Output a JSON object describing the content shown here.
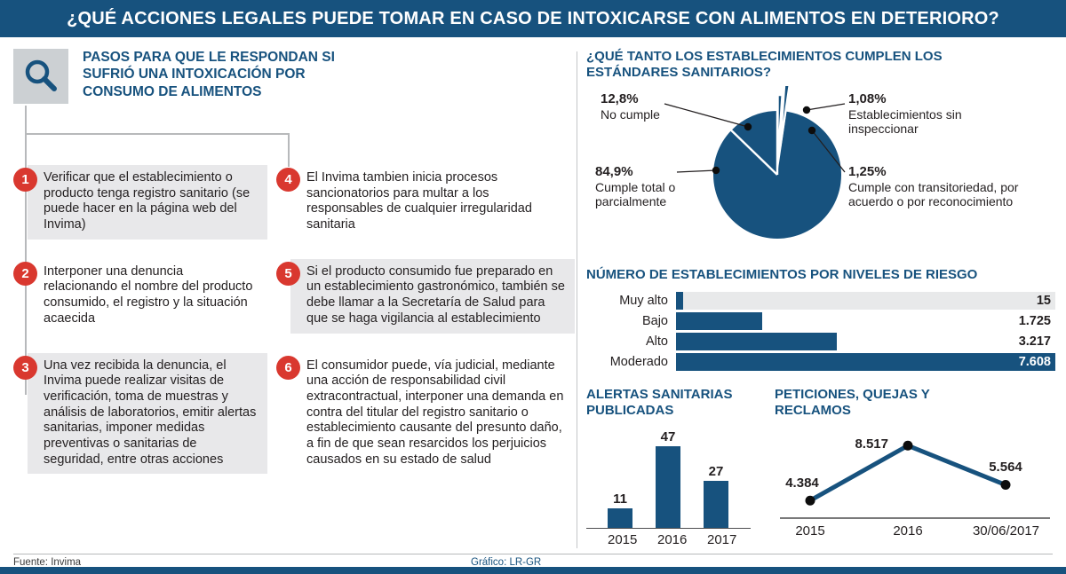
{
  "header": {
    "title": "¿QUÉ ACCIONES LEGALES PUEDE TOMAR EN CASO DE INTOXICARSE CON ALIMENTOS EN DETERIORO?"
  },
  "left": {
    "icon": "search-icon",
    "intro": "PASOS PARA QUE LE RESPONDAN SI SUFRIÓ UNA INTOXICACIÓN POR CONSUMO DE ALIMENTOS",
    "steps": [
      {
        "num": "1",
        "text": "Verificar que el establecimiento o producto tenga registro sanitario (se puede hacer en la página web del Invima)"
      },
      {
        "num": "2",
        "text": "Interponer una denuncia relacionando el nombre del producto consumido, el registro y la situación acaecida"
      },
      {
        "num": "3",
        "text": "Una vez recibida la denuncia, el Invima puede realizar visitas de verificación, toma de muestras y análisis de laboratorios, emitir alertas sanitarias, imponer medidas preventivas o sanitarias de seguridad, entre otras acciones"
      },
      {
        "num": "4",
        "text": "El Invima tambien inicia procesos sancionatorios para multar a los responsables de cualquier irregularidad sanitaria"
      },
      {
        "num": "5",
        "text": "Si el producto consumido fue preparado en un establecimiento gastronómico, también se debe llamar a la Secretaría de Salud para que se haga vigilancia al establecimiento"
      },
      {
        "num": "6",
        "text": "El consumidor puede, vía judicial, mediante una acción de responsabilidad civil extracontractual, interponer una demanda en contra del titular del registro sanitario o establecimiento causante del presunto daño, a fin de que sean resarcidos los perjuicios causados en su estado de salud"
      }
    ]
  },
  "footer": {
    "source": "Fuente: Invima",
    "credit": "Gráfico: LR-GR"
  },
  "colors": {
    "navy": "#17527e",
    "red": "#d9382f",
    "step_gray": "#e8e8ea"
  },
  "chart_data": [
    {
      "type": "pie",
      "title": "¿QUÉ TANTO LOS ESTABLECIMIENTOS CUMPLEN LOS ESTÁNDARES SANITARIOS?",
      "slices": [
        {
          "label": "Cumple total o parcialmente",
          "value_pct": 84.9,
          "display": "84,9%"
        },
        {
          "label": "No cumple",
          "value_pct": 12.8,
          "display": "12,8%"
        },
        {
          "label": "Cumple con transitoriedad, por acuerdo o por reconocimiento",
          "value_pct": 1.25,
          "display": "1,25%"
        },
        {
          "label": "Establecimientos sin inspeccionar",
          "value_pct": 1.08,
          "display": "1,08%"
        }
      ]
    },
    {
      "type": "bar",
      "orientation": "horizontal",
      "title": "NÚMERO DE ESTABLECIMIENTOS POR NIVELES DE RIESGO",
      "categories": [
        "Muy alto",
        "Bajo",
        "Alto",
        "Moderado"
      ],
      "values": [
        15,
        1725,
        3217,
        7608
      ],
      "value_labels": [
        "15",
        "1.725",
        "3.217",
        "7.608"
      ]
    },
    {
      "type": "bar",
      "orientation": "vertical",
      "title": "ALERTAS SANITARIAS PUBLICADAS",
      "categories": [
        "2015",
        "2016",
        "2017"
      ],
      "values": [
        11,
        47,
        27
      ]
    },
    {
      "type": "line",
      "title": "PETICIONES, QUEJAS Y RECLAMOS",
      "categories": [
        "2015",
        "2016",
        "30/06/2017"
      ],
      "values": [
        4384,
        8517,
        5564
      ],
      "value_labels": [
        "4.384",
        "8.517",
        "5.564"
      ]
    }
  ]
}
